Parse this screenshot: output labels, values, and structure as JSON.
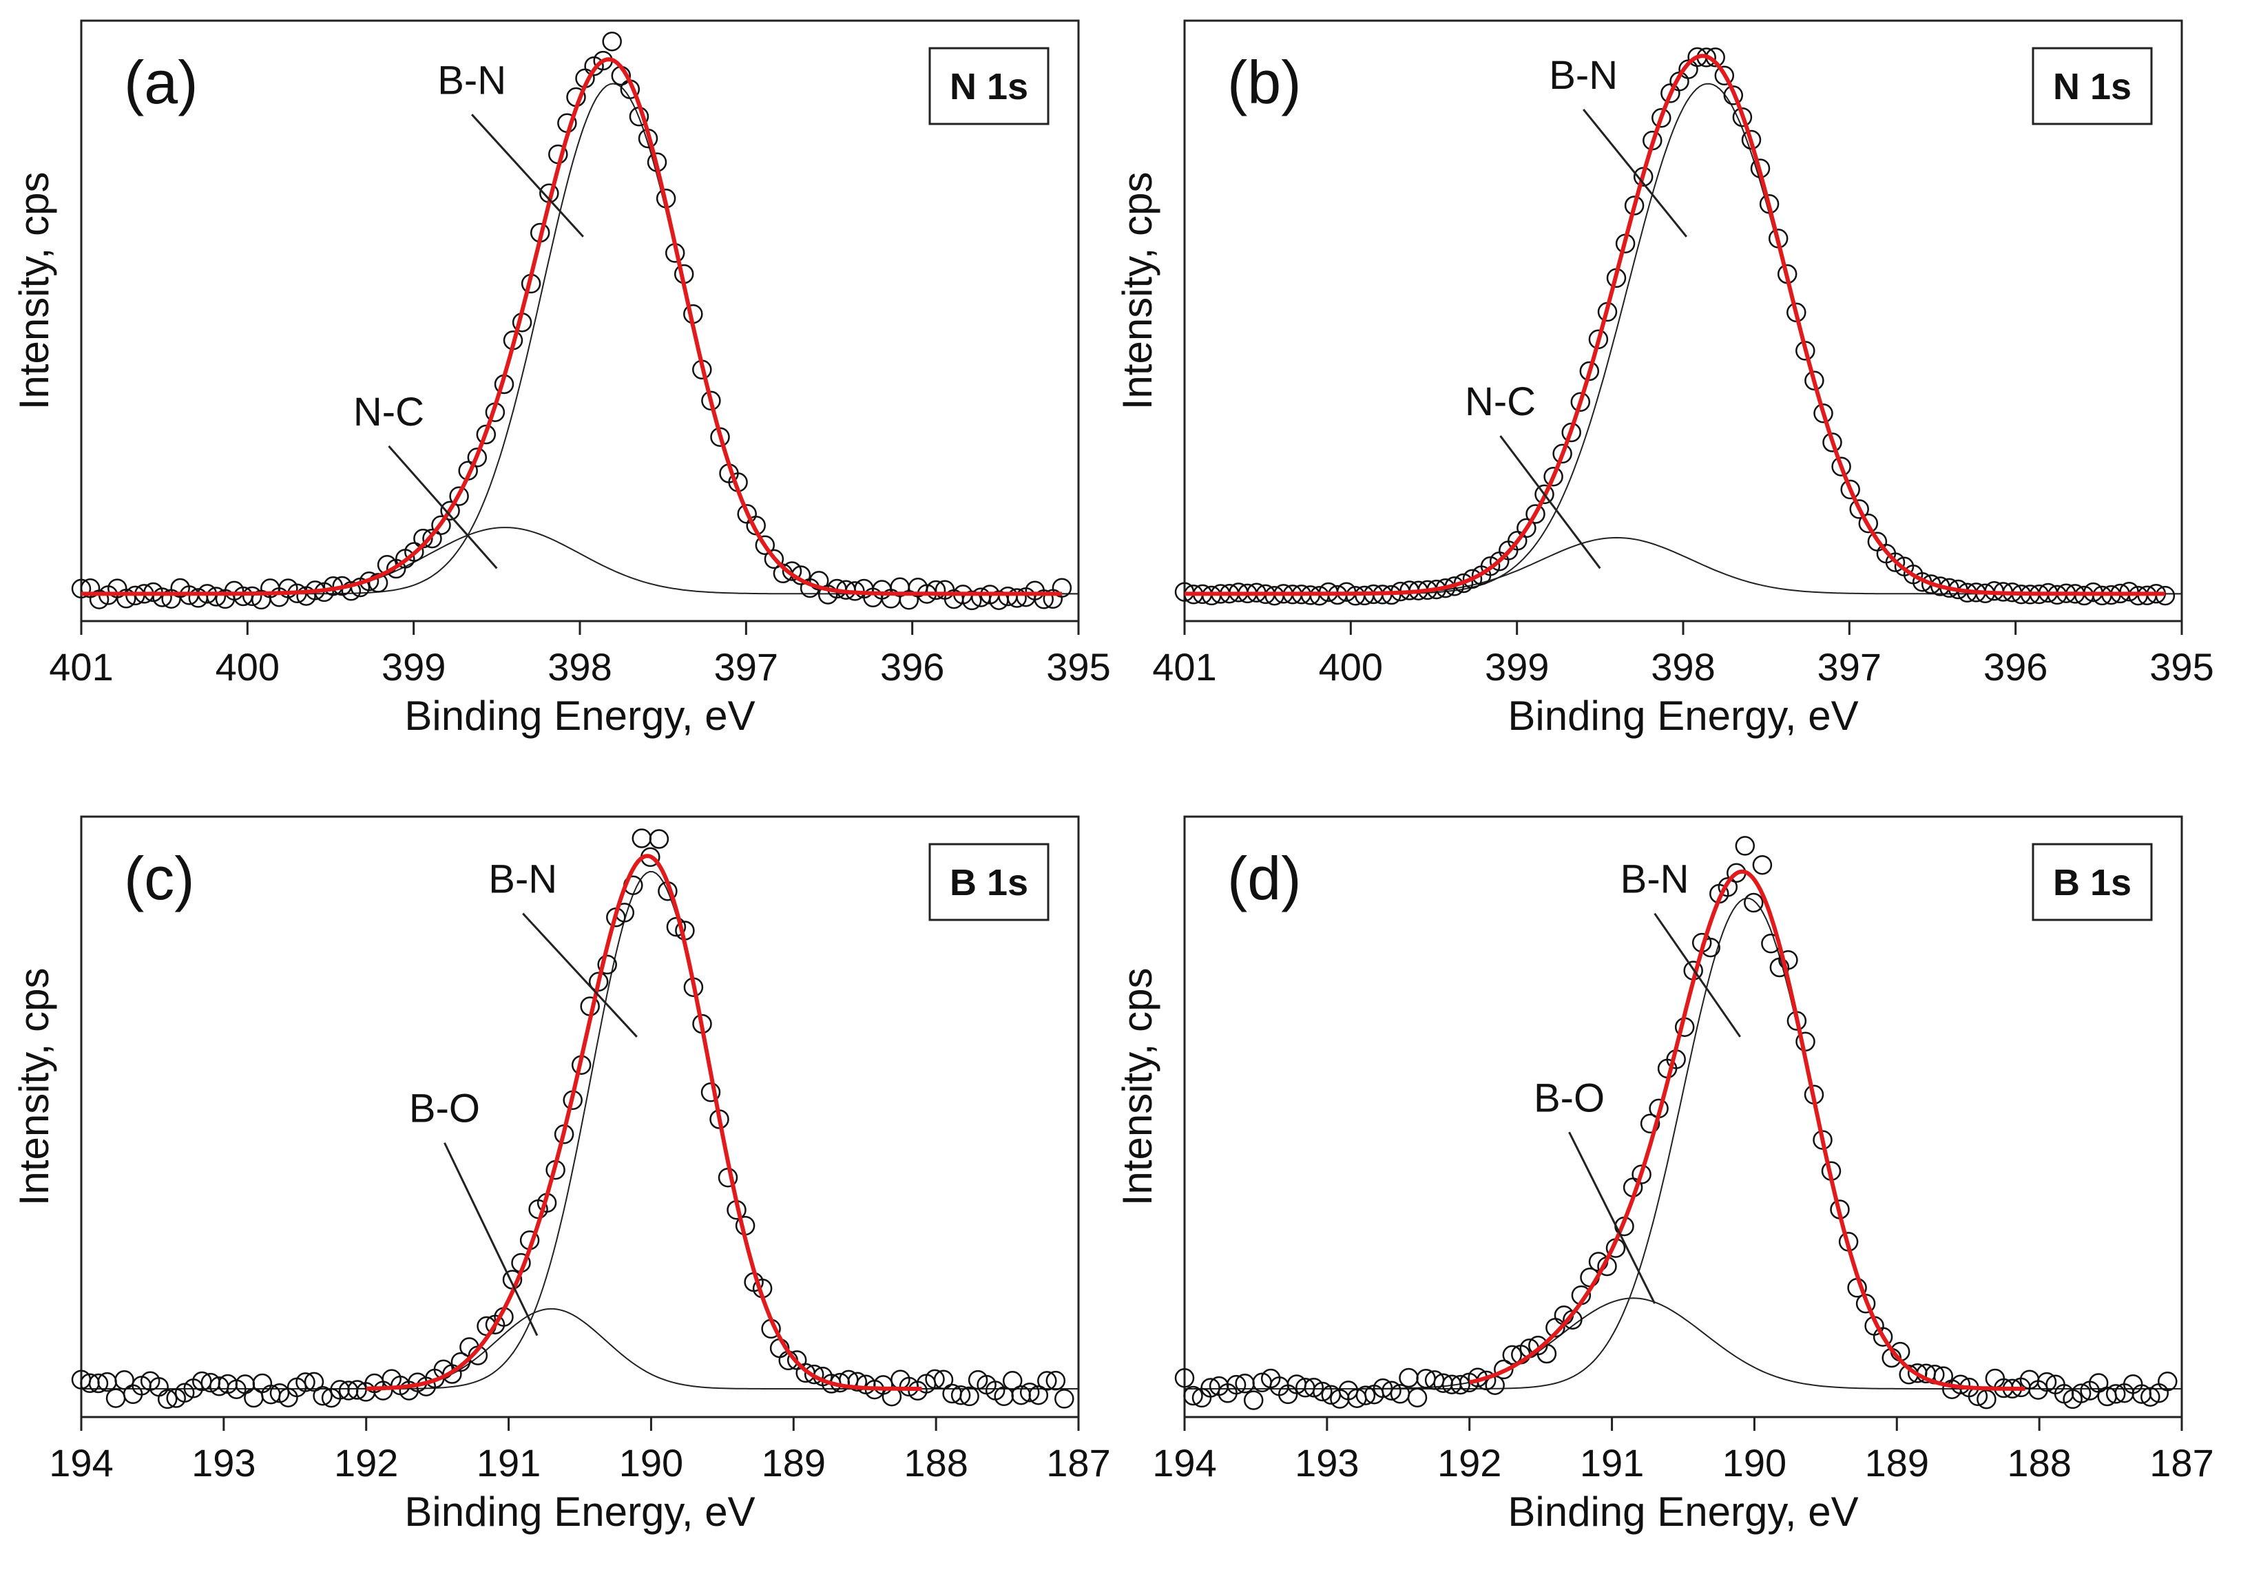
{
  "figure": {
    "description_free": true,
    "colors": {
      "fit": "#e31a1c",
      "component": "#222222",
      "data_marker": "#111111",
      "frame": "#222222"
    }
  },
  "chart_data": [
    {
      "type": "scatter",
      "panel": "(a)",
      "region": "N 1s",
      "xlabel": "Binding Energy, eV",
      "ylabel": "Intensity, cps",
      "xlim": [
        401,
        395
      ],
      "ylim": [
        0,
        1.15
      ],
      "x_ticks": [
        "401",
        "400",
        "399",
        "398",
        "397",
        "396",
        "395"
      ],
      "components": [
        {
          "name": "B-N",
          "center": 397.8,
          "sigma": 0.42,
          "amplitude": 1.0
        },
        {
          "name": "N-C",
          "center": 398.45,
          "sigma": 0.45,
          "amplitude": 0.13
        }
      ],
      "labels": [
        {
          "text": "B-N",
          "at": [
            398.65,
            1.02
          ],
          "points_to": [
            397.98,
            0.74
          ]
        },
        {
          "text": "N-C",
          "at": [
            399.15,
            0.37
          ],
          "points_to": [
            398.5,
            0.09
          ]
        }
      ],
      "noise": 0.012,
      "x_range": [
        401,
        395.1
      ],
      "n_points": 110
    },
    {
      "type": "scatter",
      "panel": "(b)",
      "region": "N 1s",
      "xlabel": "Binding Energy, eV",
      "ylabel": "Intensity, cps",
      "xlim": [
        401,
        395
      ],
      "ylim": [
        0,
        1.15
      ],
      "x_ticks": [
        "401",
        "400",
        "399",
        "398",
        "397",
        "396",
        "395"
      ],
      "components": [
        {
          "name": "B-N",
          "center": 397.85,
          "sigma": 0.48,
          "amplitude": 1.0
        },
        {
          "name": "N-C",
          "center": 398.4,
          "sigma": 0.45,
          "amplitude": 0.11
        }
      ],
      "labels": [
        {
          "text": "B-N",
          "at": [
            398.6,
            1.03
          ],
          "points_to": [
            397.98,
            0.74
          ]
        },
        {
          "text": "N-C",
          "at": [
            399.1,
            0.39
          ],
          "points_to": [
            398.5,
            0.09
          ]
        }
      ],
      "noise": 0.004,
      "x_range": [
        401,
        395.1
      ],
      "n_points": 110
    },
    {
      "type": "scatter",
      "panel": "(c)",
      "region": "B 1s",
      "xlabel": "Binding Energy, eV",
      "ylabel": "Intensity, cps",
      "xlim": [
        194,
        187
      ],
      "ylim": [
        0,
        1.1
      ],
      "x_ticks": [
        "194",
        "193",
        "192",
        "191",
        "190",
        "189",
        "188",
        "187"
      ],
      "components": [
        {
          "name": "B-N",
          "center": 190.0,
          "sigma": 0.42,
          "amplitude": 0.97
        },
        {
          "name": "B-O",
          "center": 190.7,
          "sigma": 0.38,
          "amplitude": 0.15
        }
      ],
      "labels": [
        {
          "text": "B-N",
          "at": [
            190.9,
            0.97
          ],
          "points_to": [
            190.1,
            0.7
          ]
        },
        {
          "text": "B-O",
          "at": [
            191.45,
            0.54
          ],
          "points_to": [
            190.8,
            0.14
          ]
        }
      ],
      "noise": 0.018,
      "x_range": [
        194,
        187.1
      ],
      "n_points": 115
    },
    {
      "type": "scatter",
      "panel": "(d)",
      "region": "B 1s",
      "xlabel": "Binding Energy, eV",
      "ylabel": "Intensity, cps",
      "xlim": [
        194,
        187
      ],
      "ylim": [
        0,
        1.1
      ],
      "x_ticks": [
        "194",
        "193",
        "192",
        "191",
        "190",
        "189",
        "188",
        "187"
      ],
      "components": [
        {
          "name": "B-N",
          "center": 190.05,
          "sigma": 0.45,
          "amplitude": 0.92
        },
        {
          "name": "B-O",
          "center": 190.85,
          "sigma": 0.5,
          "amplitude": 0.17
        }
      ],
      "labels": [
        {
          "text": "B-N",
          "at": [
            190.7,
            0.97
          ],
          "points_to": [
            190.1,
            0.7
          ]
        },
        {
          "text": "B-O",
          "at": [
            191.3,
            0.56
          ],
          "points_to": [
            190.7,
            0.2
          ]
        }
      ],
      "noise": 0.02,
      "x_range": [
        194,
        187.1
      ],
      "n_points": 115
    }
  ]
}
